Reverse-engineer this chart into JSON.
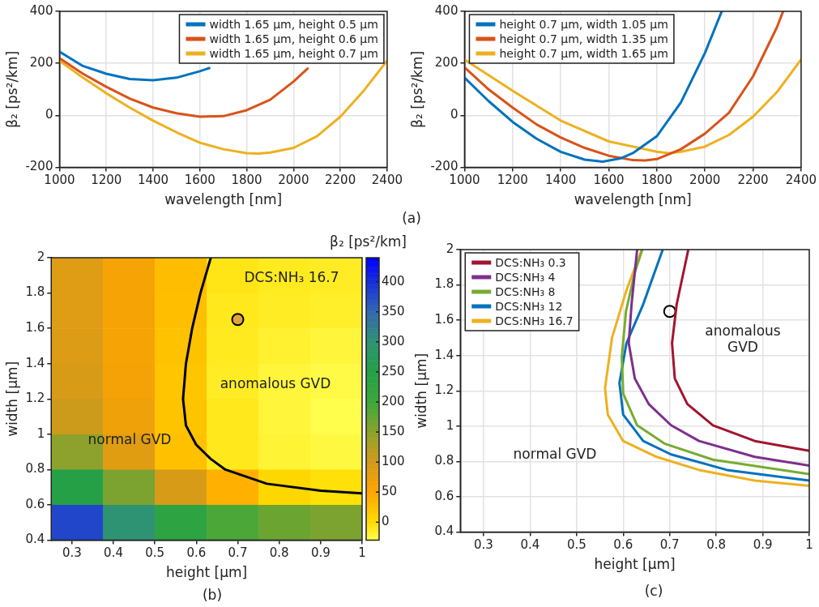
{
  "chart_data": [
    {
      "type": "line",
      "xlabel": "wavelength [nm]",
      "ylabel": "β₂ [ps²/km]",
      "xlim": [
        1000,
        2400
      ],
      "ylim": [
        -200,
        400
      ],
      "xticks": [
        1000,
        1200,
        1400,
        1600,
        1800,
        2000,
        2200,
        2400
      ],
      "yticks": [
        -200,
        0,
        200,
        400
      ],
      "grid": true,
      "legend": "top right",
      "annotations": [
        "(a)"
      ],
      "series": [
        {
          "name": "width 1.65 µm, height 0.5 µm",
          "color": "#0072bd",
          "x": [
            1000,
            1100,
            1200,
            1300,
            1400,
            1500,
            1600,
            1640
          ],
          "values": [
            245,
            190,
            160,
            140,
            135,
            145,
            170,
            182
          ]
        },
        {
          "name": "width 1.65 µm, height 0.6 µm",
          "color": "#d95319",
          "x": [
            1000,
            1100,
            1200,
            1300,
            1400,
            1500,
            1600,
            1700,
            1800,
            1900,
            2000,
            2060
          ],
          "values": [
            220,
            160,
            110,
            65,
            30,
            8,
            -5,
            -3,
            20,
            60,
            130,
            180
          ]
        },
        {
          "name": "width 1.65 µm, height 0.7 µm",
          "color": "#edb120",
          "x": [
            1000,
            1100,
            1200,
            1300,
            1400,
            1500,
            1600,
            1700,
            1800,
            1850,
            1900,
            2000,
            2100,
            2200,
            2300,
            2400
          ],
          "values": [
            210,
            145,
            85,
            30,
            -20,
            -65,
            -105,
            -130,
            -145,
            -147,
            -143,
            -125,
            -80,
            -5,
            95,
            210
          ]
        }
      ]
    },
    {
      "type": "line",
      "xlabel": "wavelength [nm]",
      "ylabel": "β₂ [ps²/km]",
      "xlim": [
        1000,
        2400
      ],
      "ylim": [
        -200,
        400
      ],
      "xticks": [
        1000,
        1200,
        1400,
        1600,
        1800,
        2000,
        2200,
        2400
      ],
      "yticks": [
        -200,
        0,
        200,
        400
      ],
      "grid": true,
      "legend": "top left",
      "series": [
        {
          "name": "height 0.7 µm, width 1.05 µm",
          "color": "#0072bd",
          "x": [
            1000,
            1100,
            1200,
            1300,
            1400,
            1500,
            1575,
            1650,
            1700,
            1800,
            1900,
            2000,
            2070
          ],
          "values": [
            145,
            55,
            -25,
            -90,
            -140,
            -170,
            -178,
            -165,
            -145,
            -80,
            50,
            240,
            400
          ]
        },
        {
          "name": "height 0.7 µm, width 1.35 µm",
          "color": "#d95319",
          "x": [
            1000,
            1100,
            1200,
            1300,
            1400,
            1500,
            1600,
            1700,
            1750,
            1800,
            1900,
            2000,
            2100,
            2200,
            2300,
            2325
          ],
          "values": [
            185,
            100,
            30,
            -35,
            -85,
            -125,
            -155,
            -172,
            -173,
            -168,
            -130,
            -70,
            10,
            150,
            340,
            400
          ]
        },
        {
          "name": "height 0.7 µm, width 1.65 µm",
          "color": "#edb120",
          "x": [
            1000,
            1200,
            1400,
            1600,
            1800,
            1850,
            1900,
            2000,
            2100,
            2200,
            2300,
            2400
          ],
          "values": [
            215,
            95,
            -20,
            -100,
            -140,
            -145,
            -140,
            -120,
            -75,
            -5,
            90,
            215
          ]
        }
      ]
    },
    {
      "type": "heatmap",
      "xlabel": "height [µm]",
      "ylabel": "width [µm]",
      "clabel": "β₂ [ps²/km]",
      "xlim": [
        0.25,
        1
      ],
      "ylim": [
        0.4,
        2
      ],
      "xticks": [
        0.3,
        0.4,
        0.5,
        0.6,
        0.7,
        0.8,
        0.9,
        1
      ],
      "yticks": [
        0.4,
        0.6,
        0.8,
        1,
        1.2,
        1.4,
        1.6,
        1.8,
        2
      ],
      "clim": [
        -30,
        440
      ],
      "cticks": [
        0,
        50,
        100,
        150,
        200,
        250,
        300,
        350,
        400
      ],
      "annotations": [
        "DCS:NH₃ 16.7",
        "anomalous GVD",
        "normal GVD",
        "(b)"
      ],
      "x": [
        0.3125,
        0.4375,
        0.5625,
        0.6875,
        0.8125,
        0.9375
      ],
      "y": [
        1.9,
        1.7,
        1.5,
        1.3,
        1.1,
        0.9,
        0.7,
        0.5
      ],
      "cells": [
        [
          88,
          60,
          28,
          -8,
          -12,
          -14
        ],
        [
          88,
          60,
          26,
          -10,
          -14,
          -16
        ],
        [
          90,
          60,
          24,
          -12,
          -18,
          -22
        ],
        [
          95,
          62,
          20,
          -14,
          -22,
          -26
        ],
        [
          105,
          68,
          22,
          -10,
          -22,
          -29
        ],
        [
          150,
          85,
          25,
          -10,
          -20,
          -24
        ],
        [
          250,
          160,
          95,
          40,
          5,
          -3
        ],
        [
          380,
          300,
          230,
          190,
          170,
          160
        ]
      ],
      "series": [
        {
          "type": "line",
          "color": "#000000",
          "x": [
            0.635,
            0.61,
            0.59,
            0.575,
            0.568,
            0.575,
            0.6,
            0.635,
            0.67,
            0.77,
            0.9,
            1
          ],
          "values": [
            2,
            1.8,
            1.6,
            1.4,
            1.2,
            1.05,
            0.94,
            0.86,
            0.8,
            0.72,
            0.68,
            0.665
          ]
        },
        {
          "type": "scatter",
          "color": "#e0a53a",
          "marker": "circle",
          "x": [
            0.7
          ],
          "values": [
            1.65
          ]
        }
      ]
    },
    {
      "type": "line",
      "xlabel": "height [µm]",
      "ylabel": "width [µm]",
      "xlim": [
        0.25,
        1
      ],
      "ylim": [
        0.4,
        2
      ],
      "xticks": [
        0.3,
        0.4,
        0.5,
        0.6,
        0.7,
        0.8,
        0.9,
        1
      ],
      "yticks": [
        0.4,
        0.6,
        0.8,
        1,
        1.2,
        1.4,
        1.6,
        1.8,
        2
      ],
      "grid": true,
      "legend": "top left",
      "annotations": [
        "anomalous\nGVD",
        "normal GVD",
        "(c)"
      ],
      "series": [
        {
          "name": "DCS:NH₃ 0.3",
          "color": "#a2142f",
          "x": [
            0.74,
            0.715,
            0.705,
            0.711,
            0.738,
            0.793,
            0.883,
            1
          ],
          "values": [
            2,
            1.69,
            1.47,
            1.27,
            1.125,
            1.005,
            0.916,
            0.86
          ]
        },
        {
          "name": "DCS:NH₃ 4",
          "color": "#7e2f8e",
          "x": [
            0.63,
            0.618,
            0.612,
            0.625,
            0.655,
            0.703,
            0.763,
            0.883,
            1
          ],
          "values": [
            2,
            1.69,
            1.47,
            1.27,
            1.125,
            1.005,
            0.916,
            0.826,
            0.777
          ]
        },
        {
          "name": "DCS:NH₃ 8",
          "color": "#77ac30",
          "x": [
            0.641,
            0.625,
            0.606,
            0.597,
            0.6,
            0.63,
            0.69,
            0.793,
            1
          ],
          "values": [
            2,
            1.87,
            1.65,
            1.39,
            1.185,
            1.005,
            0.9,
            0.81,
            0.729
          ]
        },
        {
          "name": "DCS:NH₃ 12",
          "color": "#0072bd",
          "x": [
            0.685,
            0.643,
            0.607,
            0.592,
            0.6,
            0.643,
            0.703,
            0.823,
            1
          ],
          "values": [
            2,
            1.69,
            1.47,
            1.245,
            1.065,
            0.916,
            0.84,
            0.752,
            0.692
          ]
        },
        {
          "name": "DCS:NH₃ 16.7",
          "color": "#edb120",
          "x": [
            0.64,
            0.607,
            0.576,
            0.561,
            0.567,
            0.6,
            0.672,
            0.763,
            0.883,
            1
          ],
          "values": [
            2,
            1.77,
            1.5,
            1.215,
            1.065,
            0.916,
            0.826,
            0.752,
            0.692,
            0.662
          ]
        },
        {
          "type": "scatter",
          "color": "#000000",
          "marker": "circle",
          "x": [
            0.7
          ],
          "values": [
            1.65
          ]
        }
      ]
    }
  ]
}
